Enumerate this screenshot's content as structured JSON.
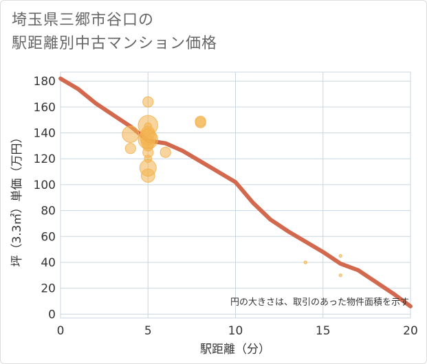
{
  "title": {
    "line1": "埼玉県三郷市谷口の",
    "line2": "駅距離別中古マンション価格"
  },
  "chart_data": {
    "type": "scatter",
    "xlabel": "駅距離（分）",
    "ylabel": "坪（3.3㎡）単価（万円）",
    "xlim": [
      0,
      20
    ],
    "ylim": [
      -3,
      187
    ],
    "x_ticks": [
      "0",
      "5",
      "10",
      "15",
      "20"
    ],
    "y_ticks": [
      "0",
      "20",
      "40",
      "60",
      "80",
      "100",
      "120",
      "140",
      "160",
      "180"
    ],
    "grid": true,
    "note": "円の大きさは、取引のあった物件面積を示す",
    "colors": {
      "bubble": "#f3b24e",
      "trend": "#d2694e",
      "grid": "#c8d6e0"
    },
    "bubbles": [
      {
        "x": 4,
        "y": 139,
        "size": 5
      },
      {
        "x": 4,
        "y": 128,
        "size": 3
      },
      {
        "x": 5,
        "y": 164,
        "size": 3
      },
      {
        "x": 5,
        "y": 146,
        "size": 6
      },
      {
        "x": 5,
        "y": 145,
        "size": 2
      },
      {
        "x": 5,
        "y": 140,
        "size": 4
      },
      {
        "x": 5,
        "y": 137,
        "size": 5
      },
      {
        "x": 5,
        "y": 135,
        "size": 6
      },
      {
        "x": 5,
        "y": 133,
        "size": 4
      },
      {
        "x": 5,
        "y": 130,
        "size": 3
      },
      {
        "x": 5,
        "y": 125,
        "size": 3
      },
      {
        "x": 5,
        "y": 120,
        "size": 2
      },
      {
        "x": 5,
        "y": 113,
        "size": 5
      },
      {
        "x": 5,
        "y": 107,
        "size": 4
      },
      {
        "x": 6,
        "y": 125,
        "size": 3
      },
      {
        "x": 8,
        "y": 149,
        "size": 3
      },
      {
        "x": 8,
        "y": 148,
        "size": 3
      },
      {
        "x": 14,
        "y": 40,
        "size": 0.5
      },
      {
        "x": 16,
        "y": 45,
        "size": 0.5
      },
      {
        "x": 16,
        "y": 30,
        "size": 0.5
      }
    ],
    "trend": {
      "x": [
        0,
        1,
        2,
        3,
        4,
        5,
        6,
        7,
        8,
        9,
        10,
        11,
        12,
        13,
        14,
        15,
        16,
        17,
        18,
        19,
        20
      ],
      "y": [
        182,
        174,
        163,
        154,
        145,
        134,
        132,
        126,
        118,
        110,
        102,
        86,
        73,
        64,
        56,
        48,
        39,
        34,
        25,
        16,
        6
      ]
    }
  }
}
